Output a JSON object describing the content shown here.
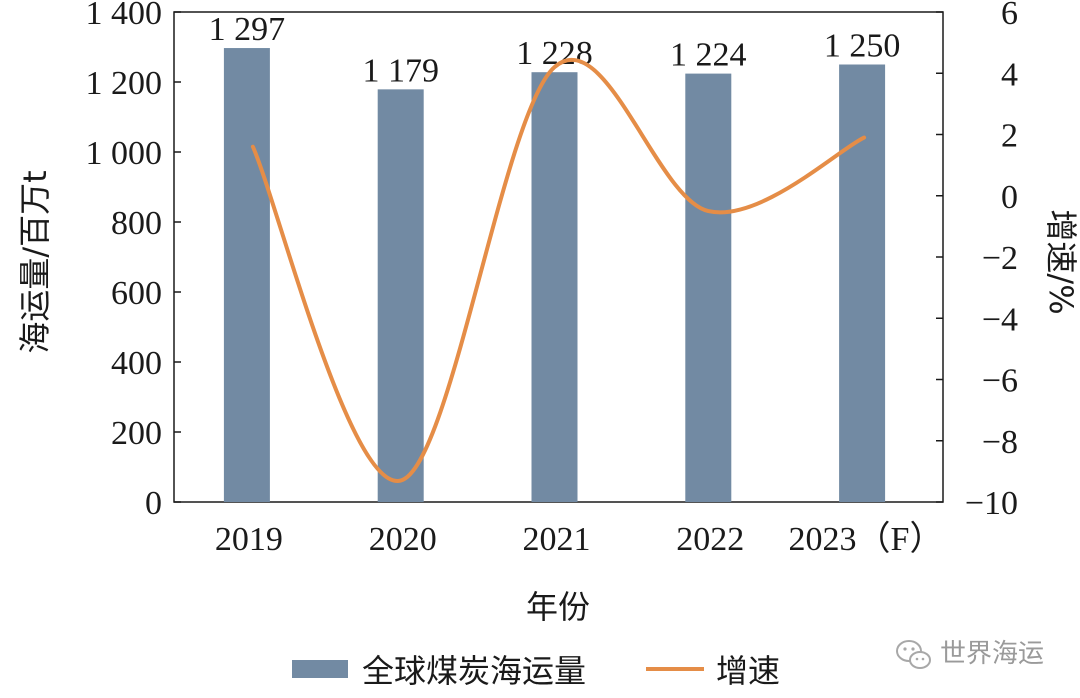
{
  "chart_data": {
    "type": "bar",
    "categories": [
      "2019",
      "2020",
      "2021",
      "2022",
      "2023（F）"
    ],
    "series": [
      {
        "name": "全球煤炭海运量",
        "type": "bar",
        "axis": "left",
        "values": [
          1297,
          1179,
          1228,
          1224,
          1250
        ],
        "labels": [
          "1 297",
          "1 179",
          "1 228",
          "1 224",
          "1 250"
        ],
        "color": "#728aa3"
      },
      {
        "name": "增速",
        "type": "line",
        "axis": "right",
        "smooth": true,
        "values": [
          1.6,
          -9.3,
          4.2,
          -0.5,
          1.9
        ],
        "color": "#e58d47"
      }
    ],
    "xlabel": "年份",
    "ylabel": "海运量/百万t",
    "y2label": "增速/%",
    "ylim": [
      0,
      1400
    ],
    "y2lim": [
      -10,
      6
    ],
    "yticks": [
      0,
      200,
      400,
      600,
      800,
      1000,
      1200,
      1400
    ],
    "yticklabels": [
      "0",
      "200",
      "400",
      "600",
      "800",
      "1 000",
      "1 200",
      "1 400"
    ],
    "y2ticks": [
      -10,
      -8,
      -6,
      -4,
      -2,
      0,
      2,
      4,
      6
    ],
    "y2ticklabels": [
      "−10",
      "−8",
      "−6",
      "−4",
      "−2",
      "0",
      "2",
      "4",
      "6"
    ],
    "grid": false,
    "legend": "bottom"
  },
  "watermark": {
    "text": "世界海运",
    "icon": "wechat-icon"
  }
}
